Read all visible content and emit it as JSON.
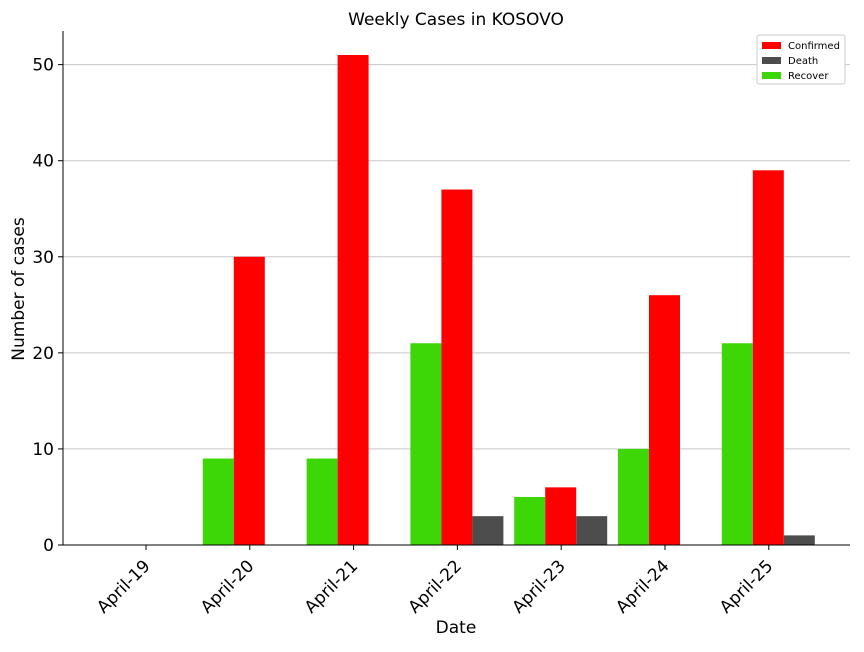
{
  "chart_data": {
    "type": "bar",
    "title": "Weekly Cases in KOSOVO",
    "xlabel": "Date",
    "ylabel": "Number of cases",
    "categories": [
      "April-19",
      "April-20",
      "April-21",
      "April-22",
      "April-23",
      "April-24",
      "April-25"
    ],
    "series": [
      {
        "name": "Recover",
        "color": "#3dd606",
        "values": [
          0,
          9,
          9,
          21,
          5,
          10,
          21
        ]
      },
      {
        "name": "Confirmed",
        "color": "#ff0000",
        "values": [
          0,
          30,
          51,
          37,
          6,
          26,
          39
        ]
      },
      {
        "name": "Death",
        "color": "#4d4d4d",
        "values": [
          0,
          0,
          0,
          3,
          3,
          0,
          1
        ]
      }
    ],
    "legend_order": [
      "Confirmed",
      "Death",
      "Recover"
    ],
    "legend_position": "top-right",
    "ylim": [
      0,
      53.5
    ],
    "yticks": [
      0,
      10,
      20,
      30,
      40,
      50
    ],
    "grid": "horizontal",
    "grid_color": "#c8c8c8"
  }
}
